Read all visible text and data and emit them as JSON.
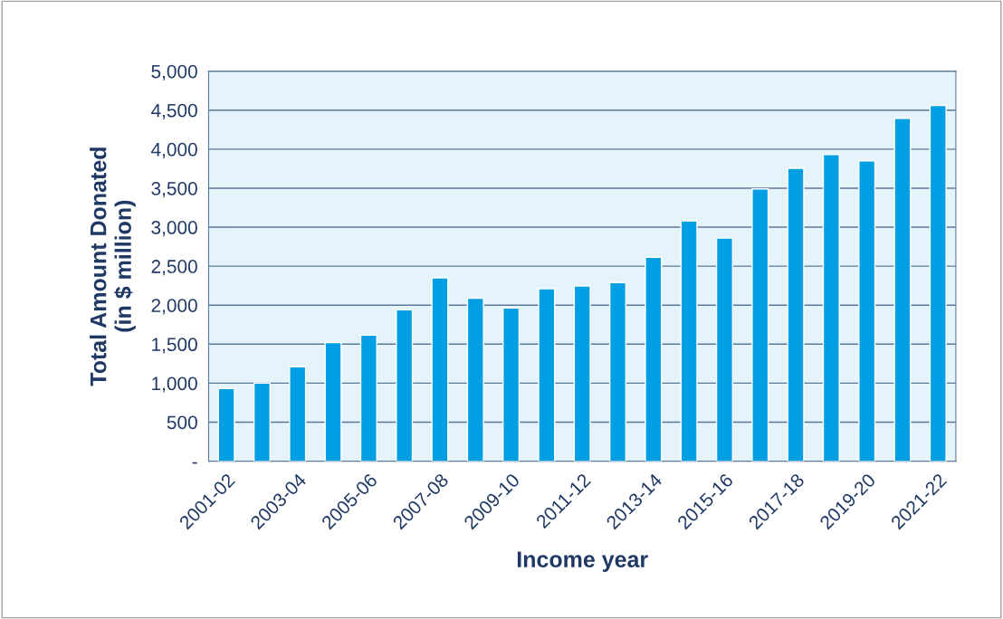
{
  "chart_data": {
    "type": "bar",
    "xlabel": "Income year",
    "ylabel": "Total Amount Donated\n(in $ million)",
    "categories": [
      "2001-02",
      null,
      "2003-04",
      null,
      "2005-06",
      null,
      "2007-08",
      null,
      "2009-10",
      null,
      "2011-12",
      null,
      "2013-14",
      null,
      "2015-16",
      null,
      "2017-18",
      null,
      "2019-20",
      null,
      "2021-22"
    ],
    "values": [
      930,
      1000,
      1210,
      1520,
      1615,
      1940,
      2350,
      2090,
      1965,
      2210,
      2245,
      2290,
      2615,
      3080,
      2860,
      3490,
      3755,
      3930,
      3850,
      4395,
      4560
    ],
    "color": "#009fe3",
    "ylim": [
      0,
      5000
    ],
    "yticks": [
      {
        "value": 0,
        "label": "-"
      },
      {
        "value": 500,
        "label": "500"
      },
      {
        "value": 1000,
        "label": "1,000"
      },
      {
        "value": 1500,
        "label": "1,500"
      },
      {
        "value": 2000,
        "label": "2,000"
      },
      {
        "value": 2500,
        "label": "2,500"
      },
      {
        "value": 3000,
        "label": "3,000"
      },
      {
        "value": 3500,
        "label": "3,500"
      },
      {
        "value": 4000,
        "label": "4,000"
      },
      {
        "value": 4500,
        "label": "4,500"
      },
      {
        "value": 5000,
        "label": "5,000"
      }
    ],
    "grid": "y"
  }
}
